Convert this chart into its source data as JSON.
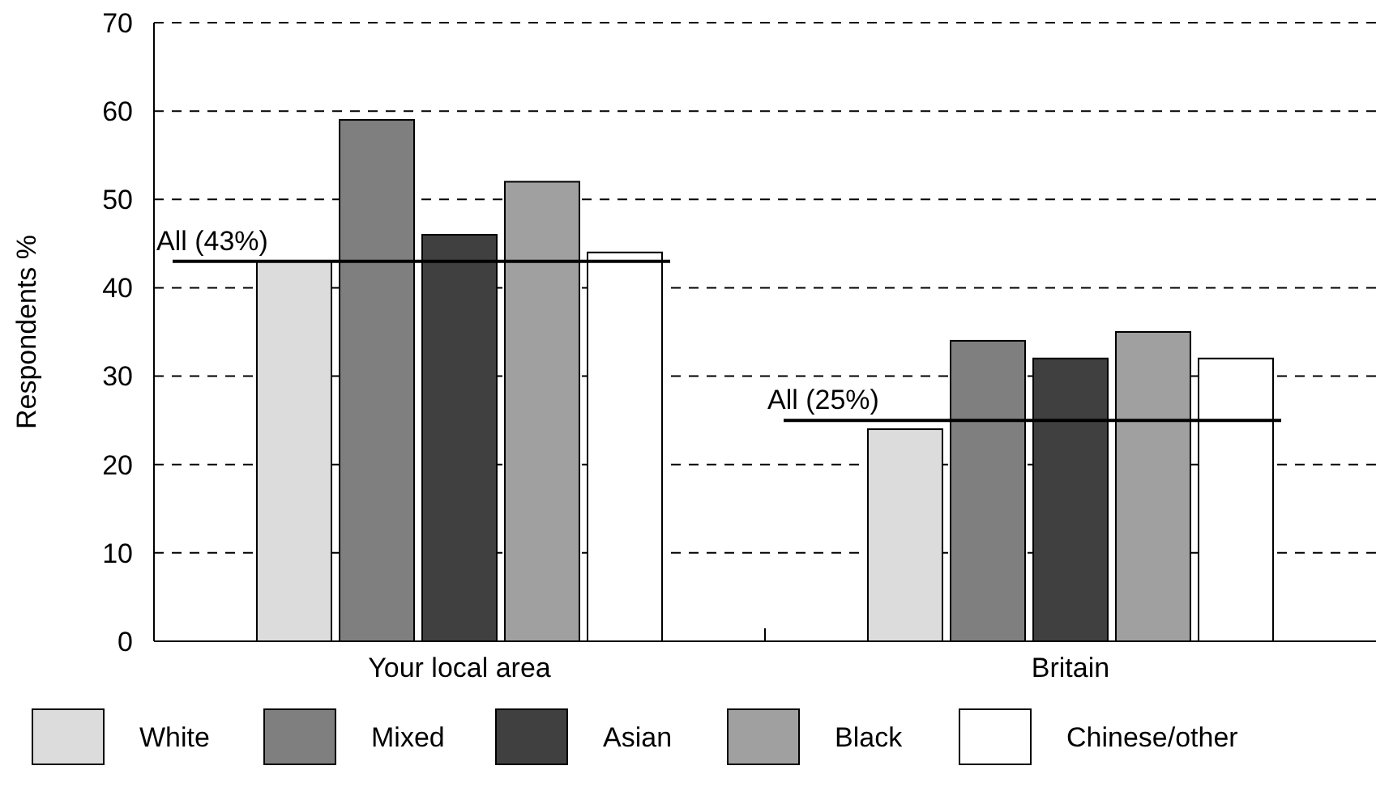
{
  "chart_data": {
    "type": "bar",
    "ylabel": "Respondents %",
    "categories": [
      "Your local area",
      "Britain"
    ],
    "series": [
      {
        "name": "White",
        "color": "#dcdcdc",
        "values": [
          43,
          24
        ]
      },
      {
        "name": "Mixed",
        "color": "#7f7f7f",
        "values": [
          59,
          34
        ]
      },
      {
        "name": "Asian",
        "color": "#404040",
        "values": [
          46,
          32
        ]
      },
      {
        "name": "Black",
        "color": "#a0a0a0",
        "values": [
          52,
          35
        ]
      },
      {
        "name": "Chinese/other",
        "color": "#ffffff",
        "values": [
          44,
          32
        ]
      }
    ],
    "ylim": [
      0,
      70
    ],
    "yticks": [
      0,
      10,
      20,
      30,
      40,
      50,
      60,
      70
    ],
    "grid": "y",
    "legend": "bottom",
    "ref_lines": [
      {
        "axis": "y",
        "value": 43,
        "label": "All (43%)",
        "color": "#000000"
      },
      {
        "axis": "y",
        "value": 25,
        "label": "All (25%)",
        "color": "#000000"
      }
    ]
  }
}
